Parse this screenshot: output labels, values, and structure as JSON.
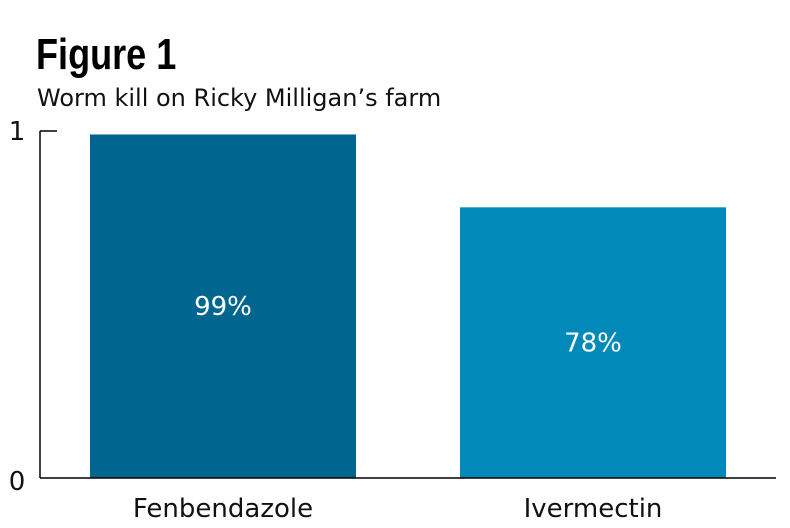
{
  "chart_data": {
    "type": "bar",
    "title": "Figure 1",
    "subtitle": "Worm kill on Ricky Milligan’s farm",
    "categories": [
      "Fenbendazole",
      "Ivermectin"
    ],
    "values": [
      0.99,
      0.78
    ],
    "data_labels": [
      "99%",
      "78%"
    ],
    "ylim": [
      0,
      1
    ],
    "yticks": [
      {
        "value": 0,
        "label": "0"
      },
      {
        "value": 1,
        "label": "1"
      }
    ],
    "xlabel": "",
    "ylabel": "",
    "grid": false,
    "colors": [
      "#00668f",
      "#0089b9"
    ],
    "label_color": "#ffffff"
  }
}
